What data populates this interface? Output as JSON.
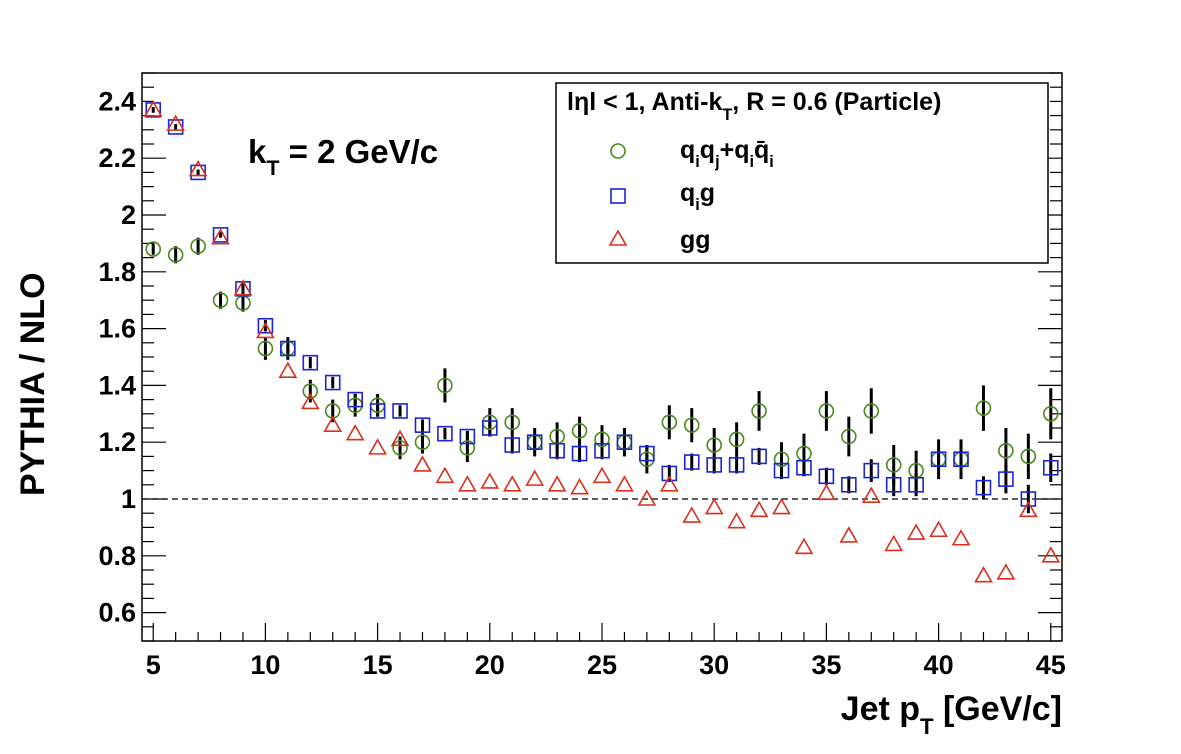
{
  "chart_data": {
    "type": "scatter",
    "xlabel_main": "Jet p",
    "xlabel_sub": "T",
    "xlabel_tail": " [GeV/c]",
    "ylabel": "PYTHIA / NLO",
    "xlim": [
      4.5,
      45.5
    ],
    "ylim": [
      0.5,
      2.5
    ],
    "xticks": [
      5,
      10,
      15,
      20,
      25,
      30,
      35,
      40,
      45
    ],
    "yticks": [
      0.6,
      0.8,
      1,
      1.2,
      1.4,
      1.6,
      1.8,
      2,
      2.2,
      2.4
    ],
    "ytick_labels": [
      "0.6",
      "0.8",
      "1",
      "1.2",
      "1.4",
      "1.6",
      "1.8",
      "2",
      "2.2",
      "2.4"
    ],
    "reference_line": 1,
    "grid": false,
    "annotation": {
      "main": "k",
      "sub": "T",
      "tail": " = 2 GeV/c"
    },
    "legend": {
      "placement": "top-right",
      "header": {
        "part1": "lηl < 1, Anti-k",
        "sub": "T",
        "part2": ", R = 0.6 (Particle)"
      },
      "entries": [
        {
          "id": "qq",
          "parts": [
            "q",
            "i",
            "q",
            "j",
            "+q",
            "i",
            "q̄",
            "i"
          ]
        },
        {
          "id": "qg",
          "parts": [
            "q",
            "i",
            "g"
          ]
        },
        {
          "id": "gg",
          "parts": [
            "gg"
          ]
        }
      ]
    },
    "colors": {
      "qq": "#4a8a1c",
      "qg": "#1a25d4",
      "gg": "#d9301e",
      "error": "#000000"
    },
    "series": [
      {
        "id": "qq",
        "marker": "circle",
        "x": [
          5,
          6,
          7,
          8,
          9,
          10,
          11,
          12,
          13,
          14,
          15,
          16,
          17,
          18,
          19,
          20,
          21,
          22,
          23,
          24,
          25,
          26,
          27,
          28,
          29,
          30,
          31,
          32,
          33,
          34,
          35,
          36,
          37,
          38,
          39,
          40,
          41,
          42,
          43,
          44,
          45
        ],
        "y": [
          1.88,
          1.86,
          1.89,
          1.7,
          1.69,
          1.53,
          1.53,
          1.38,
          1.31,
          1.33,
          1.33,
          1.18,
          1.2,
          1.4,
          1.18,
          1.27,
          1.27,
          1.2,
          1.22,
          1.24,
          1.21,
          1.2,
          1.14,
          1.27,
          1.26,
          1.19,
          1.21,
          1.31,
          1.14,
          1.16,
          1.31,
          1.22,
          1.31,
          1.12,
          1.1,
          1.14,
          1.14,
          1.32,
          1.17,
          1.15,
          1.3
        ],
        "err": [
          0.02,
          0.03,
          0.03,
          0.03,
          0.03,
          0.04,
          0.04,
          0.04,
          0.04,
          0.04,
          0.04,
          0.04,
          0.04,
          0.06,
          0.05,
          0.05,
          0.05,
          0.05,
          0.05,
          0.05,
          0.05,
          0.05,
          0.05,
          0.06,
          0.06,
          0.06,
          0.06,
          0.07,
          0.06,
          0.07,
          0.07,
          0.07,
          0.08,
          0.07,
          0.07,
          0.07,
          0.07,
          0.08,
          0.08,
          0.08,
          0.09
        ]
      },
      {
        "id": "qg",
        "marker": "square",
        "x": [
          5,
          6,
          7,
          8,
          9,
          10,
          11,
          12,
          13,
          14,
          15,
          16,
          17,
          18,
          19,
          20,
          21,
          22,
          23,
          24,
          25,
          26,
          27,
          28,
          29,
          30,
          31,
          32,
          33,
          34,
          35,
          36,
          37,
          38,
          39,
          40,
          41,
          42,
          43,
          44,
          45
        ],
        "y": [
          2.37,
          2.31,
          2.15,
          1.93,
          1.74,
          1.61,
          1.53,
          1.48,
          1.41,
          1.35,
          1.31,
          1.31,
          1.26,
          1.23,
          1.22,
          1.25,
          1.19,
          1.2,
          1.17,
          1.16,
          1.17,
          1.2,
          1.16,
          1.09,
          1.13,
          1.12,
          1.12,
          1.15,
          1.1,
          1.11,
          1.08,
          1.05,
          1.1,
          1.05,
          1.05,
          1.14,
          1.14,
          1.04,
          1.07,
          1.0,
          1.11
        ],
        "err": [
          0.01,
          0.01,
          0.01,
          0.01,
          0.02,
          0.02,
          0.02,
          0.02,
          0.02,
          0.02,
          0.02,
          0.02,
          0.02,
          0.02,
          0.02,
          0.03,
          0.03,
          0.03,
          0.03,
          0.03,
          0.03,
          0.03,
          0.03,
          0.03,
          0.03,
          0.03,
          0.03,
          0.03,
          0.03,
          0.03,
          0.03,
          0.03,
          0.04,
          0.04,
          0.04,
          0.04,
          0.04,
          0.04,
          0.05,
          0.05,
          0.05
        ]
      },
      {
        "id": "gg",
        "marker": "triangle",
        "x": [
          5,
          6,
          7,
          8,
          9,
          10,
          11,
          12,
          13,
          14,
          15,
          16,
          17,
          18,
          19,
          20,
          21,
          22,
          23,
          24,
          25,
          26,
          27,
          28,
          29,
          30,
          31,
          32,
          33,
          34,
          35,
          36,
          37,
          38,
          39,
          40,
          41,
          42,
          43,
          44,
          45
        ],
        "y": [
          2.37,
          2.32,
          2.16,
          1.92,
          1.74,
          1.59,
          1.45,
          1.34,
          1.26,
          1.23,
          1.18,
          1.21,
          1.12,
          1.08,
          1.05,
          1.06,
          1.05,
          1.07,
          1.05,
          1.04,
          1.08,
          1.05,
          1.0,
          1.05,
          0.94,
          0.97,
          0.92,
          0.96,
          0.97,
          0.83,
          1.02,
          0.87,
          1.01,
          0.84,
          0.88,
          0.89,
          0.86,
          0.73,
          0.74,
          0.96,
          0.8
        ]
      }
    ]
  }
}
